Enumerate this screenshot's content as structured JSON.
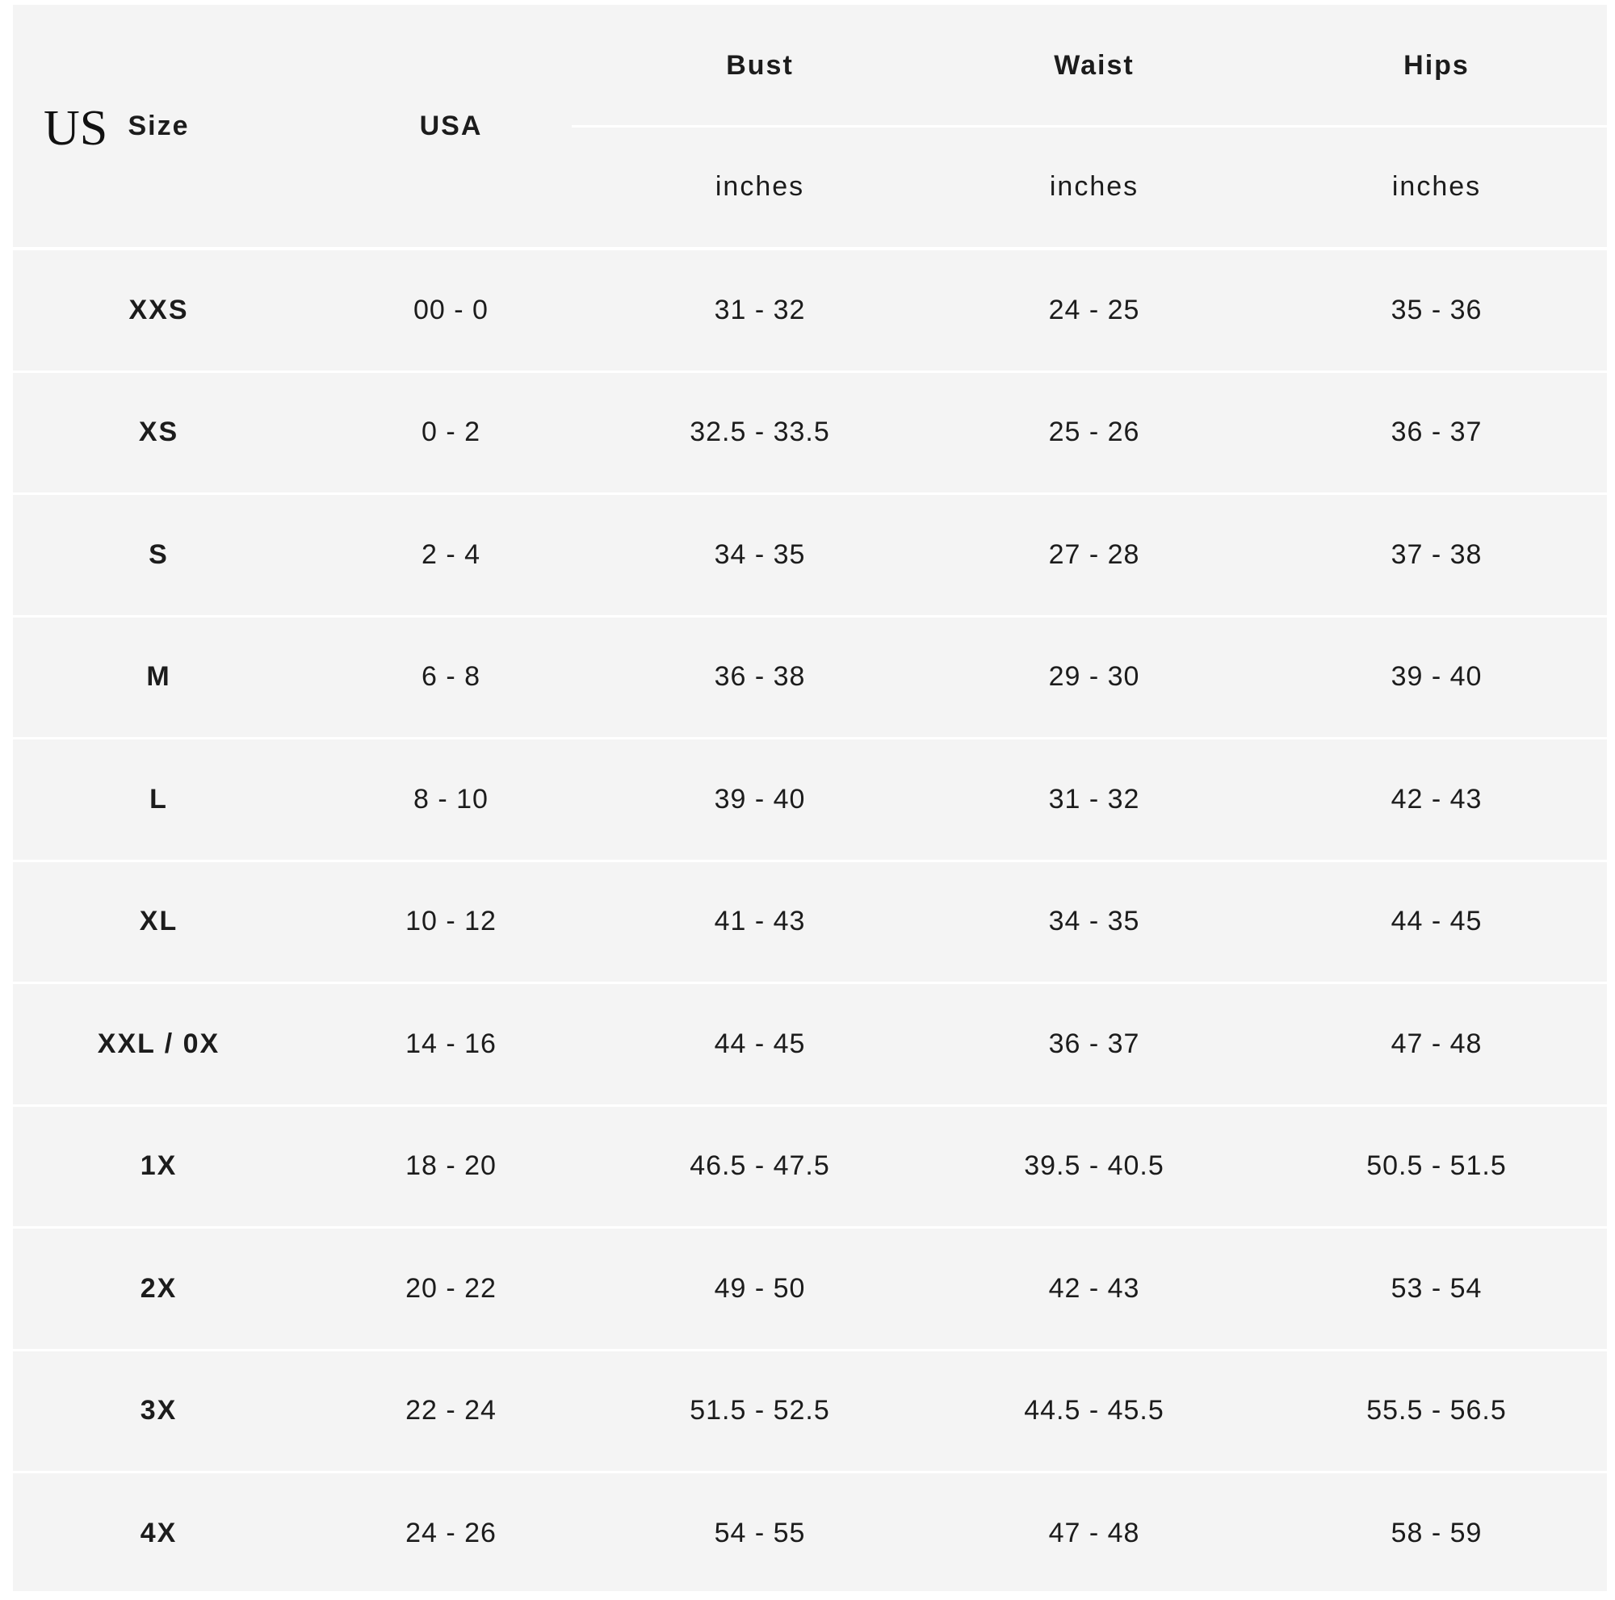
{
  "label": "US",
  "header": {
    "size": "Size",
    "usa": "USA",
    "bust": "Bust",
    "waist": "Waist",
    "hips": "Hips",
    "unit": "inches"
  },
  "rows": [
    [
      "XXS",
      "00 - 0",
      "31 - 32",
      "24 - 25",
      "35 - 36"
    ],
    [
      "XS",
      "0 - 2",
      "32.5 - 33.5",
      "25 - 26",
      "36 - 37"
    ],
    [
      "S",
      "2 - 4",
      "34 - 35",
      "27 - 28",
      "37 - 38"
    ],
    [
      "M",
      "6 - 8",
      "36 - 38",
      "29 - 30",
      "39 - 40"
    ],
    [
      "L",
      "8 - 10",
      "39 - 40",
      "31 - 32",
      "42 - 43"
    ],
    [
      "XL",
      "10 - 12",
      "41 - 43",
      "34 - 35",
      "44 - 45"
    ],
    [
      "XXL / 0X",
      "14 - 16",
      "44 - 45",
      "36 - 37",
      "47 - 48"
    ],
    [
      "1X",
      "18 - 20",
      "46.5 - 47.5",
      "39.5 - 40.5",
      "50.5 - 51.5"
    ],
    [
      "2X",
      "20 - 22",
      "49 - 50",
      "42 - 43",
      "53 - 54"
    ],
    [
      "3X",
      "22 - 24",
      "51.5 - 52.5",
      "44.5 - 45.5",
      "55.5 - 56.5"
    ],
    [
      "4X",
      "24 - 26",
      "54 - 55",
      "47 - 48",
      "58 - 59"
    ]
  ]
}
